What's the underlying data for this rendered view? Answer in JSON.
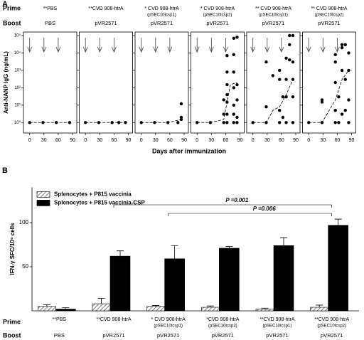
{
  "panel_a": {
    "label": "A",
    "row_labels": [
      "Prime",
      "Boost"
    ],
    "ylabel": "Anti-NANP IgG (ng/mL)",
    "xlabel": "Days after immunization"
  },
  "panel_b": {
    "label": "B"
  },
  "chart_data": [
    {
      "type": "scatter",
      "prime": "**PBS",
      "boost": "PBS",
      "log_y": true,
      "color": "#000000",
      "x": [
        0,
        28,
        56,
        84
      ],
      "values": [
        1,
        1,
        1,
        1
      ],
      "median": {
        "x": [
          0,
          28,
          56,
          84
        ],
        "values": [
          1,
          1,
          1,
          1
        ]
      },
      "arrows_x": [
        0,
        30,
        60
      ],
      "xlim": [
        -13,
        99
      ],
      "xticks": [
        0,
        30,
        60,
        90
      ],
      "ylim": [
        0.25,
        160000
      ],
      "yticks": [
        {
          "value": 1,
          "label": "10⁰"
        },
        {
          "value": 10,
          "label": "10¹"
        },
        {
          "value": 100,
          "label": "10²"
        },
        {
          "value": 1000,
          "label": "10³"
        },
        {
          "value": 10000,
          "label": "10⁴"
        },
        {
          "value": 100000,
          "label": "10⁵"
        }
      ]
    },
    {
      "type": "scatter",
      "prime": "**CVD 908-htrA",
      "boost": "pVR2571",
      "log_y": true,
      "color": "#000000",
      "x": [
        0,
        28,
        56,
        70,
        84
      ],
      "values": [
        1,
        1,
        1,
        1,
        1
      ],
      "median": {
        "x": [
          0,
          28,
          56,
          84
        ],
        "values": [
          1,
          1,
          1,
          1
        ]
      },
      "arrows_x": [
        0,
        30,
        60
      ],
      "xlim": [
        -13,
        99
      ],
      "xticks": [
        0,
        30,
        60,
        90
      ],
      "ylim": [
        0.25,
        160000
      ]
    },
    {
      "type": "scatter",
      "prime": "* CVD 908-htrA",
      "prime_sub": "(pSEC10tcsp1)",
      "boost": "pVR2571",
      "log_y": true,
      "color": "#000000",
      "x": [
        0,
        28,
        56,
        77,
        84,
        84,
        84
      ],
      "values": [
        1,
        1,
        1,
        1,
        12,
        1.5,
        2
      ],
      "median": {
        "x": [
          0,
          28,
          56,
          84
        ],
        "values": [
          1,
          1,
          1,
          1.5
        ]
      },
      "arrows_x": [
        0,
        30,
        60
      ],
      "xlim": [
        -13,
        99
      ],
      "xticks": [
        0,
        30,
        60,
        90
      ],
      "ylim": [
        0.25,
        160000
      ]
    },
    {
      "type": "scatter",
      "prime": "* CVD 908-htrA",
      "prime_sub": "(pSEC10tcsp2)",
      "boost": "pVR2571",
      "log_y": true,
      "color": "#000000",
      "x": [
        0,
        28,
        56,
        56,
        56,
        63,
        63,
        63,
        63,
        63,
        63,
        63,
        77,
        77,
        77,
        77,
        77,
        77,
        77,
        84,
        84,
        84,
        84,
        84
      ],
      "values": [
        1,
        1,
        1,
        3,
        20,
        1,
        3,
        15,
        40,
        150,
        800,
        7000,
        1,
        3,
        10,
        100,
        800,
        8000,
        70000,
        1,
        2,
        20,
        150,
        80000
      ],
      "median": {
        "x": [
          0,
          28,
          56,
          63,
          70,
          84
        ],
        "values": [
          1,
          1,
          1.5,
          15,
          150,
          200
        ]
      },
      "arrows_x": [
        0,
        30,
        60
      ],
      "xlim": [
        -13,
        99
      ],
      "xticks": [
        0,
        30,
        60,
        90
      ],
      "ylim": [
        0.25,
        160000
      ]
    },
    {
      "type": "scatter",
      "prime": "** CVD 908-htrA",
      "prime_sub": "(pSEC10tcsp1)",
      "boost": "pVR2571",
      "log_y": true,
      "color": "#000000",
      "x": [
        0,
        28,
        28,
        28,
        42,
        56,
        56,
        56,
        56,
        63,
        63,
        70,
        70,
        70,
        70,
        77,
        77,
        77,
        84,
        84,
        84,
        84,
        84
      ],
      "values": [
        1,
        1,
        8,
        3000,
        500,
        1,
        5,
        300,
        1000,
        2,
        30,
        1,
        30,
        300,
        5000,
        4000,
        100000,
        30000,
        1,
        30,
        300,
        100000,
        3000
      ],
      "median": {
        "x": [
          0,
          28,
          42,
          56,
          70,
          84
        ],
        "values": [
          1,
          1,
          5,
          8,
          40,
          300
        ]
      },
      "arrows_x": [
        0,
        30,
        60
      ],
      "xlim": [
        -13,
        99
      ],
      "xticks": [
        0,
        30,
        60,
        90
      ],
      "ylim": [
        0.25,
        160000
      ]
    },
    {
      "type": "scatter",
      "prime": "** CVD 908-htrA",
      "prime_sub": "(pSEC10tcsp2)",
      "boost": "pVR2571",
      "log_y": true,
      "color": "#000000",
      "x": [
        0,
        28,
        28,
        28,
        56,
        56,
        56,
        56,
        56,
        63,
        63,
        70,
        70,
        70,
        70,
        77,
        77,
        77,
        84,
        84,
        84,
        84
      ],
      "values": [
        1,
        1,
        20,
        15,
        1,
        5,
        200,
        3000,
        8000,
        1,
        30,
        3,
        1000,
        20000,
        30000,
        5,
        300,
        30000,
        1,
        20,
        1000,
        10000
      ],
      "median": {
        "x": [
          0,
          28,
          56,
          70,
          84
        ],
        "values": [
          1,
          1,
          20,
          300,
          1000
        ]
      },
      "arrows_x": [
        0,
        30,
        60
      ],
      "xlim": [
        -13,
        99
      ],
      "xticks": [
        0,
        30,
        60,
        90
      ],
      "ylim": [
        0.25,
        160000
      ]
    },
    {
      "type": "bar",
      "ylabel": "IFN-γ SFC/10⁶ cells",
      "row_labels": [
        "Prime",
        "Boost"
      ],
      "legend_corner": "top-left",
      "categories": [
        "**PBS",
        "**CVD 908-htrA",
        "* CVD 908-htrA",
        "*CVD 908-htrA",
        "**CVD 908-htrA",
        "**CVD 908-htrA"
      ],
      "category_subs": [
        null,
        null,
        "(pSEC10tcsp1)",
        "(pSEC10tcsp2)",
        "(pSEC10tcsp1)",
        "(pSEC10tcsp2)"
      ],
      "boosts": [
        "PBS",
        "pVR2571",
        "pVR2571",
        "pVR2571",
        "pVR2571",
        "pVR2571"
      ],
      "series": [
        {
          "name": "Splenocytes + P815 vaccinia",
          "color": "#555555",
          "pattern": "hatch",
          "values": [
            5,
            8,
            5,
            4,
            2,
            4
          ],
          "errors": [
            2,
            6,
            1,
            1.5,
            1,
            2.5
          ]
        },
        {
          "name": "Splenocytes + P815 vaccinia-CSP",
          "color": "#000000",
          "pattern": "solid",
          "values": [
            2,
            62,
            59,
            71,
            74,
            97
          ],
          "errors": [
            1.5,
            6,
            15,
            2,
            9,
            7
          ]
        }
      ],
      "ylim": [
        0,
        140
      ],
      "yticks": [
        50,
        100
      ],
      "annotations": [
        "P =0.001",
        "P =0.006"
      ]
    }
  ]
}
